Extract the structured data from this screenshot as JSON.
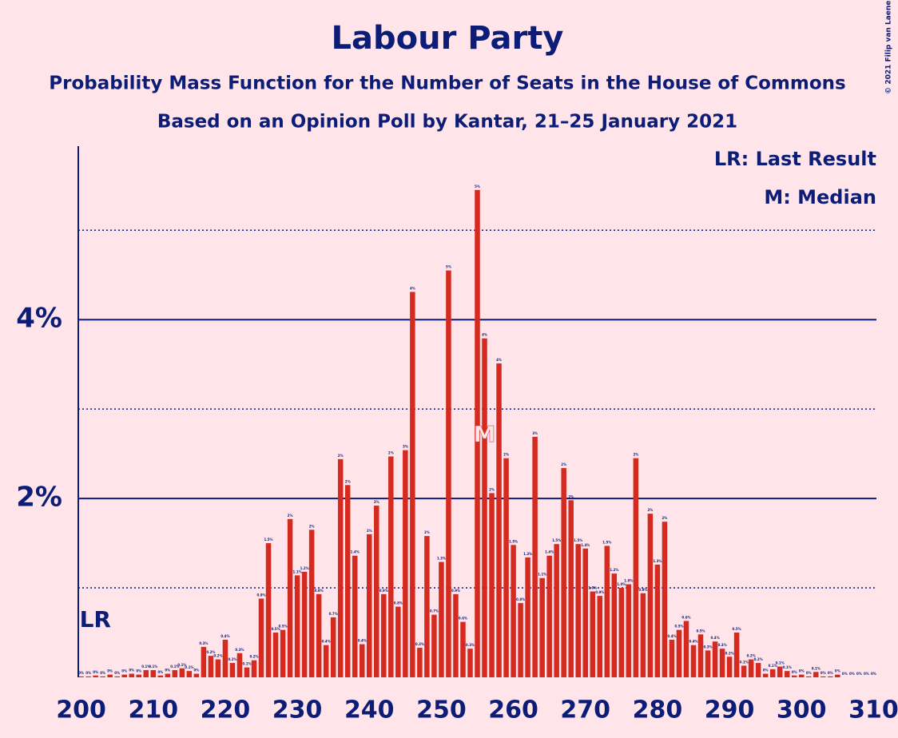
{
  "chart_data": {
    "type": "bar",
    "title": "Labour Party",
    "subtitles": [
      "Probability Mass Function for the Number of Seats in the House of Commons",
      "Based on an Opinion Poll by Kantar, 21–25 January 2021"
    ],
    "copyright": "© 2021 Filip van Laenen",
    "legend": [
      "LR: Last Result",
      "M: Median"
    ],
    "last_result": {
      "x": 200,
      "label": "LR"
    },
    "median": {
      "x": 256,
      "label": "M"
    },
    "color": "#d52a20",
    "x": [
      200,
      201,
      202,
      203,
      204,
      205,
      206,
      207,
      208,
      209,
      210,
      211,
      212,
      213,
      214,
      215,
      216,
      217,
      218,
      219,
      220,
      221,
      222,
      223,
      224,
      225,
      226,
      227,
      228,
      229,
      230,
      231,
      232,
      233,
      234,
      235,
      236,
      237,
      238,
      239,
      240,
      241,
      242,
      243,
      244,
      245,
      246,
      247,
      248,
      249,
      250,
      251,
      252,
      253,
      254,
      255,
      256,
      257,
      258,
      259,
      260,
      261,
      262,
      263,
      264,
      265,
      266,
      267,
      268,
      269,
      270,
      271,
      272,
      273,
      274,
      275,
      276,
      277,
      278,
      279,
      280,
      281,
      282,
      283,
      284,
      285,
      286,
      287,
      288,
      289,
      290,
      291,
      292,
      293,
      294,
      295,
      296,
      297,
      298,
      299,
      300,
      301,
      302,
      303,
      304,
      305,
      306,
      307,
      308,
      309,
      310
    ],
    "values": [
      0.01,
      0.01,
      0.02,
      0.01,
      0.03,
      0.01,
      0.03,
      0.04,
      0.03,
      0.08,
      0.08,
      0.02,
      0.04,
      0.08,
      0.1,
      0.07,
      0.04,
      0.34,
      0.24,
      0.2,
      0.42,
      0.16,
      0.27,
      0.11,
      0.19,
      0.88,
      1.5,
      0.5,
      0.53,
      1.77,
      1.14,
      1.18,
      1.65,
      0.93,
      0.36,
      0.67,
      2.44,
      2.15,
      1.36,
      0.37,
      1.6,
      1.92,
      0.93,
      2.47,
      0.79,
      2.54,
      4.31,
      0.33,
      1.58,
      0.7,
      1.29,
      4.55,
      0.93,
      0.62,
      0.32,
      5.45,
      3.79,
      2.06,
      3.51,
      2.45,
      1.48,
      0.83,
      1.34,
      2.69,
      1.11,
      1.36,
      1.49,
      2.34,
      1.98,
      1.49,
      1.44,
      0.96,
      0.91,
      1.47,
      1.16,
      1.0,
      1.04,
      2.45,
      0.94,
      1.83,
      1.26,
      1.74,
      0.42,
      0.53,
      0.63,
      0.36,
      0.48,
      0.3,
      0.4,
      0.32,
      0.23,
      0.5,
      0.13,
      0.2,
      0.16,
      0.04,
      0.09,
      0.12,
      0.07,
      0.02,
      0.03,
      0.01,
      0.06,
      0.01,
      0.01,
      0.03,
      0,
      0,
      0,
      0,
      0
    ],
    "value_labels": [
      "0%",
      "0%",
      "0%",
      "0%",
      "0%",
      "0%",
      "0%",
      "0%",
      "0%",
      "0.1%",
      "0.1%",
      "0%",
      "0%",
      "0.1%",
      "0.1%",
      "0.1%",
      "0%",
      "0.3%",
      "0.2%",
      "0.2%",
      "0.4%",
      "0.2%",
      "0.3%",
      "0.1%",
      "0.2%",
      "0.9%",
      "1.5%",
      "0.5%",
      "0.5%",
      "2%",
      "1.1%",
      "1.2%",
      "2%",
      "0.9%",
      "0.4%",
      "0.7%",
      "2%",
      "2%",
      "1.4%",
      "0.4%",
      "2%",
      "2%",
      "0.9%",
      "2%",
      "0.8%",
      "3%",
      "4%",
      "0.3%",
      "2%",
      "0.7%",
      "1.3%",
      "5%",
      "0.9%",
      "0.6%",
      "0.3%",
      "5%",
      "4%",
      "2%",
      "4%",
      "2%",
      "1.5%",
      "0.8%",
      "1.3%",
      "3%",
      "1.1%",
      "1.4%",
      "1.5%",
      "2%",
      "2%",
      "1.5%",
      "1.4%",
      "1.0%",
      "0.9%",
      "1.5%",
      "1.2%",
      "1.0%",
      "1.0%",
      "2%",
      "0.9%",
      "2%",
      "1.3%",
      "2%",
      "0.4%",
      "0.5%",
      "0.6%",
      "0.4%",
      "0.5%",
      "0.3%",
      "0.4%",
      "0.3%",
      "0.2%",
      "0.5%",
      "0.1%",
      "0.2%",
      "0.2%",
      "0%",
      "0.1%",
      "0.1%",
      "0.1%",
      "0%",
      "0%",
      "0%",
      "0.1%",
      "0%",
      "0%",
      "0%",
      "0%",
      "0%",
      "0%",
      "0%",
      "0%"
    ],
    "xlim": [
      199.6,
      310.4
    ],
    "xticks": [
      200,
      210,
      220,
      230,
      240,
      250,
      260,
      270,
      280,
      290,
      300,
      310
    ],
    "ylim": [
      0,
      5.94
    ],
    "yticks": [
      {
        "value": 2,
        "label": "2%"
      },
      {
        "value": 4,
        "label": "4%"
      }
    ],
    "minor_yticks": [
      1,
      3,
      5
    ],
    "grid": true
  }
}
